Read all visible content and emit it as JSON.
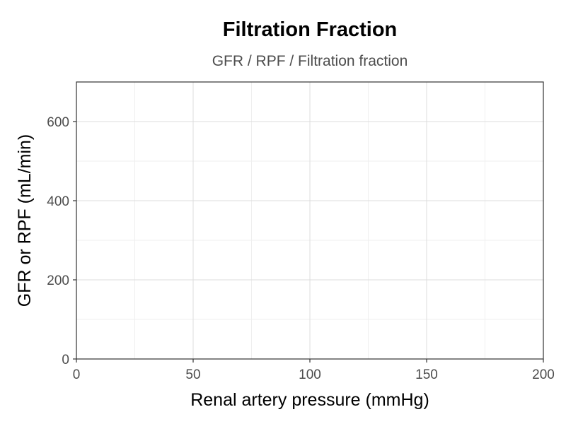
{
  "chart_data": {
    "type": "line",
    "title": "Filtration Fraction",
    "subtitle": "GFR / RPF / Filtration fraction",
    "xlabel": "Renal artery pressure (mmHg)",
    "ylabel": "GFR or RPF (mL/min)",
    "xlim": [
      0,
      200
    ],
    "ylim": [
      0,
      700
    ],
    "x_ticks": [
      0,
      50,
      100,
      150,
      200
    ],
    "y_ticks": [
      0,
      200,
      400,
      600
    ],
    "x_minor": [
      25,
      75,
      125,
      175
    ],
    "y_minor": [
      100,
      300,
      500,
      700
    ],
    "grid": true,
    "series": []
  },
  "colors": {
    "grid_major": "#dcdcdc",
    "grid_minor": "#efefef",
    "axis": "#333333",
    "background": "#ffffff"
  }
}
